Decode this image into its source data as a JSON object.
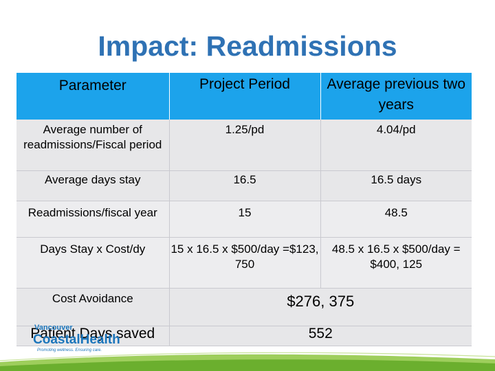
{
  "title": "Impact: Readmissions",
  "table": {
    "headers": [
      "Parameter",
      "Project Period",
      "Average previous two years"
    ],
    "rows": {
      "r1": {
        "param": "Average number of readmissions/Fiscal period",
        "project": "1.25/pd",
        "previous": "4.04/pd"
      },
      "r2": {
        "param": "Average days stay",
        "project": "16.5",
        "previous": "16.5 days"
      },
      "r3": {
        "param": "Readmissions/fiscal year",
        "project": "15",
        "previous": "48.5"
      },
      "r4": {
        "param": "Days Stay x Cost/dy",
        "project": "15 x 16.5 x $500/day =$123, 750",
        "previous": "48.5 x 16.5 x $500/day = $400, 125"
      },
      "r5": {
        "param": "Cost Avoidance",
        "value": "$276, 375"
      },
      "r6": {
        "param": "Patient Days saved",
        "value": "552"
      }
    }
  },
  "logo": {
    "line1": "Vancouver",
    "line2": "CoastalHealth",
    "tagline": "Promoting wellness. Ensuring care."
  },
  "colors": {
    "title": "#2F72B4",
    "header": "#1CA3EB",
    "row": "#E7E7E9",
    "green": "#8DC63F",
    "logo_blue": "#1B75BB"
  }
}
